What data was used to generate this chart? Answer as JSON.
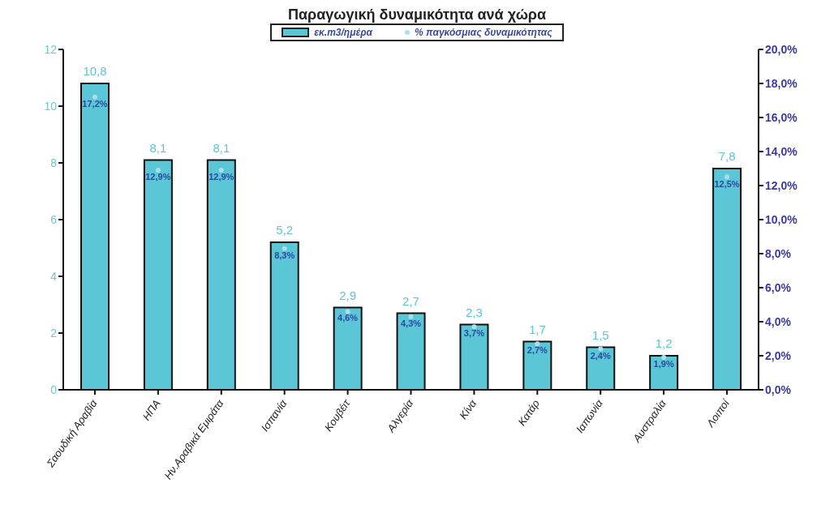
{
  "chart_data": {
    "type": "bar",
    "title": "Παραγωγική δυναμικότητα ανά χώρα",
    "categories": [
      "Σαουδική Αραβία",
      "ΗΠΑ",
      "Ην.Αραβικά Εμιράτα",
      "Ισπανία",
      "Κουβέιτ",
      "Αλγερία",
      "Κίνα",
      "Κατάρ",
      "Ιαπωνία",
      "Αυστραλία",
      "Λοιποί"
    ],
    "series": [
      {
        "name": "εκ.m3/ημέρα",
        "color": "#5bc6d6",
        "values": [
          10.8,
          8.1,
          8.1,
          5.2,
          2.9,
          2.7,
          2.3,
          1.7,
          1.5,
          1.2,
          7.8
        ],
        "value_labels": [
          "10,8",
          "8,1",
          "8,1",
          "5,2",
          "2,9",
          "2,7",
          "2,3",
          "1,7",
          "1,5",
          "1,2",
          "7,8"
        ]
      },
      {
        "name": "% παγκόσμιας δυναμικότητας",
        "type": "scatter",
        "axis": "y2",
        "color": "#a8e0ea",
        "values": [
          17.2,
          12.9,
          12.9,
          8.3,
          4.6,
          4.3,
          3.7,
          2.7,
          2.4,
          1.9,
          12.5
        ],
        "value_labels": [
          "17,2%",
          "12,9%",
          "12,9%",
          "8,3%",
          "4,6%",
          "4,3%",
          "3,7%",
          "2,7%",
          "2,4%",
          "1,9%",
          "12,5%"
        ]
      }
    ],
    "ylim": [
      0,
      12
    ],
    "yticks": [
      0,
      2,
      4,
      6,
      8,
      10,
      12
    ],
    "y2lim": [
      0,
      20
    ],
    "y2ticks": [
      {
        "value": 0,
        "label": "0,0%"
      },
      {
        "value": 2,
        "label": "2,0%"
      },
      {
        "value": 4,
        "label": "4,0%"
      },
      {
        "value": 6,
        "label": "6,0%"
      },
      {
        "value": 8,
        "label": "8,0%"
      },
      {
        "value": 10,
        "label": "10,0%"
      },
      {
        "value": 12,
        "label": "12,0%"
      },
      {
        "value": 14,
        "label": "14,0%"
      },
      {
        "value": 16,
        "label": "16,0%"
      },
      {
        "value": 18,
        "label": "18,0%"
      },
      {
        "value": 20,
        "label": "20,0%"
      }
    ],
    "legend": "top",
    "marker": "circle",
    "grid": false
  }
}
